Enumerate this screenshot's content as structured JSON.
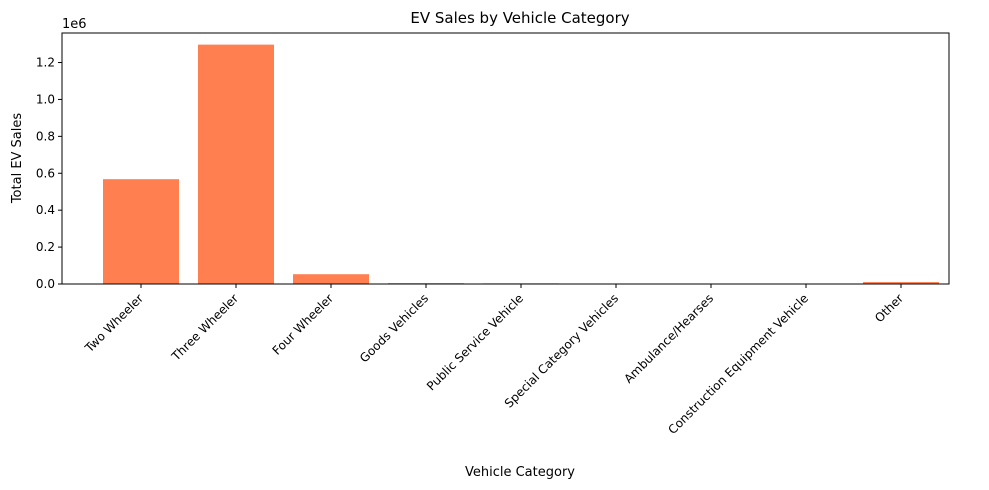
{
  "chart_data": {
    "type": "bar",
    "title": "EV Sales by Vehicle Category",
    "xlabel": "Vehicle Category",
    "ylabel": "Total EV Sales",
    "y_offset_text": "1e6",
    "categories": [
      "Two Wheeler",
      "Three Wheeler",
      "Four Wheeler",
      "Goods Vehicles",
      "Public Service Vehicle",
      "Special Category Vehicles",
      "Ambulance/Hearses",
      "Construction Equipment Vehicle",
      "Other"
    ],
    "values": [
      568000,
      1297000,
      53000,
      4500,
      3500,
      1000,
      200,
      100,
      10500
    ],
    "ylim": [
      0,
      1360000
    ],
    "y_ticks": [
      0,
      200000,
      400000,
      600000,
      800000,
      1000000,
      1200000
    ],
    "y_tick_labels": [
      "0.0",
      "0.2",
      "0.4",
      "0.6",
      "0.8",
      "1.0",
      "1.2"
    ],
    "bar_color": "#ff7f50",
    "grid": false,
    "legend": "none"
  }
}
